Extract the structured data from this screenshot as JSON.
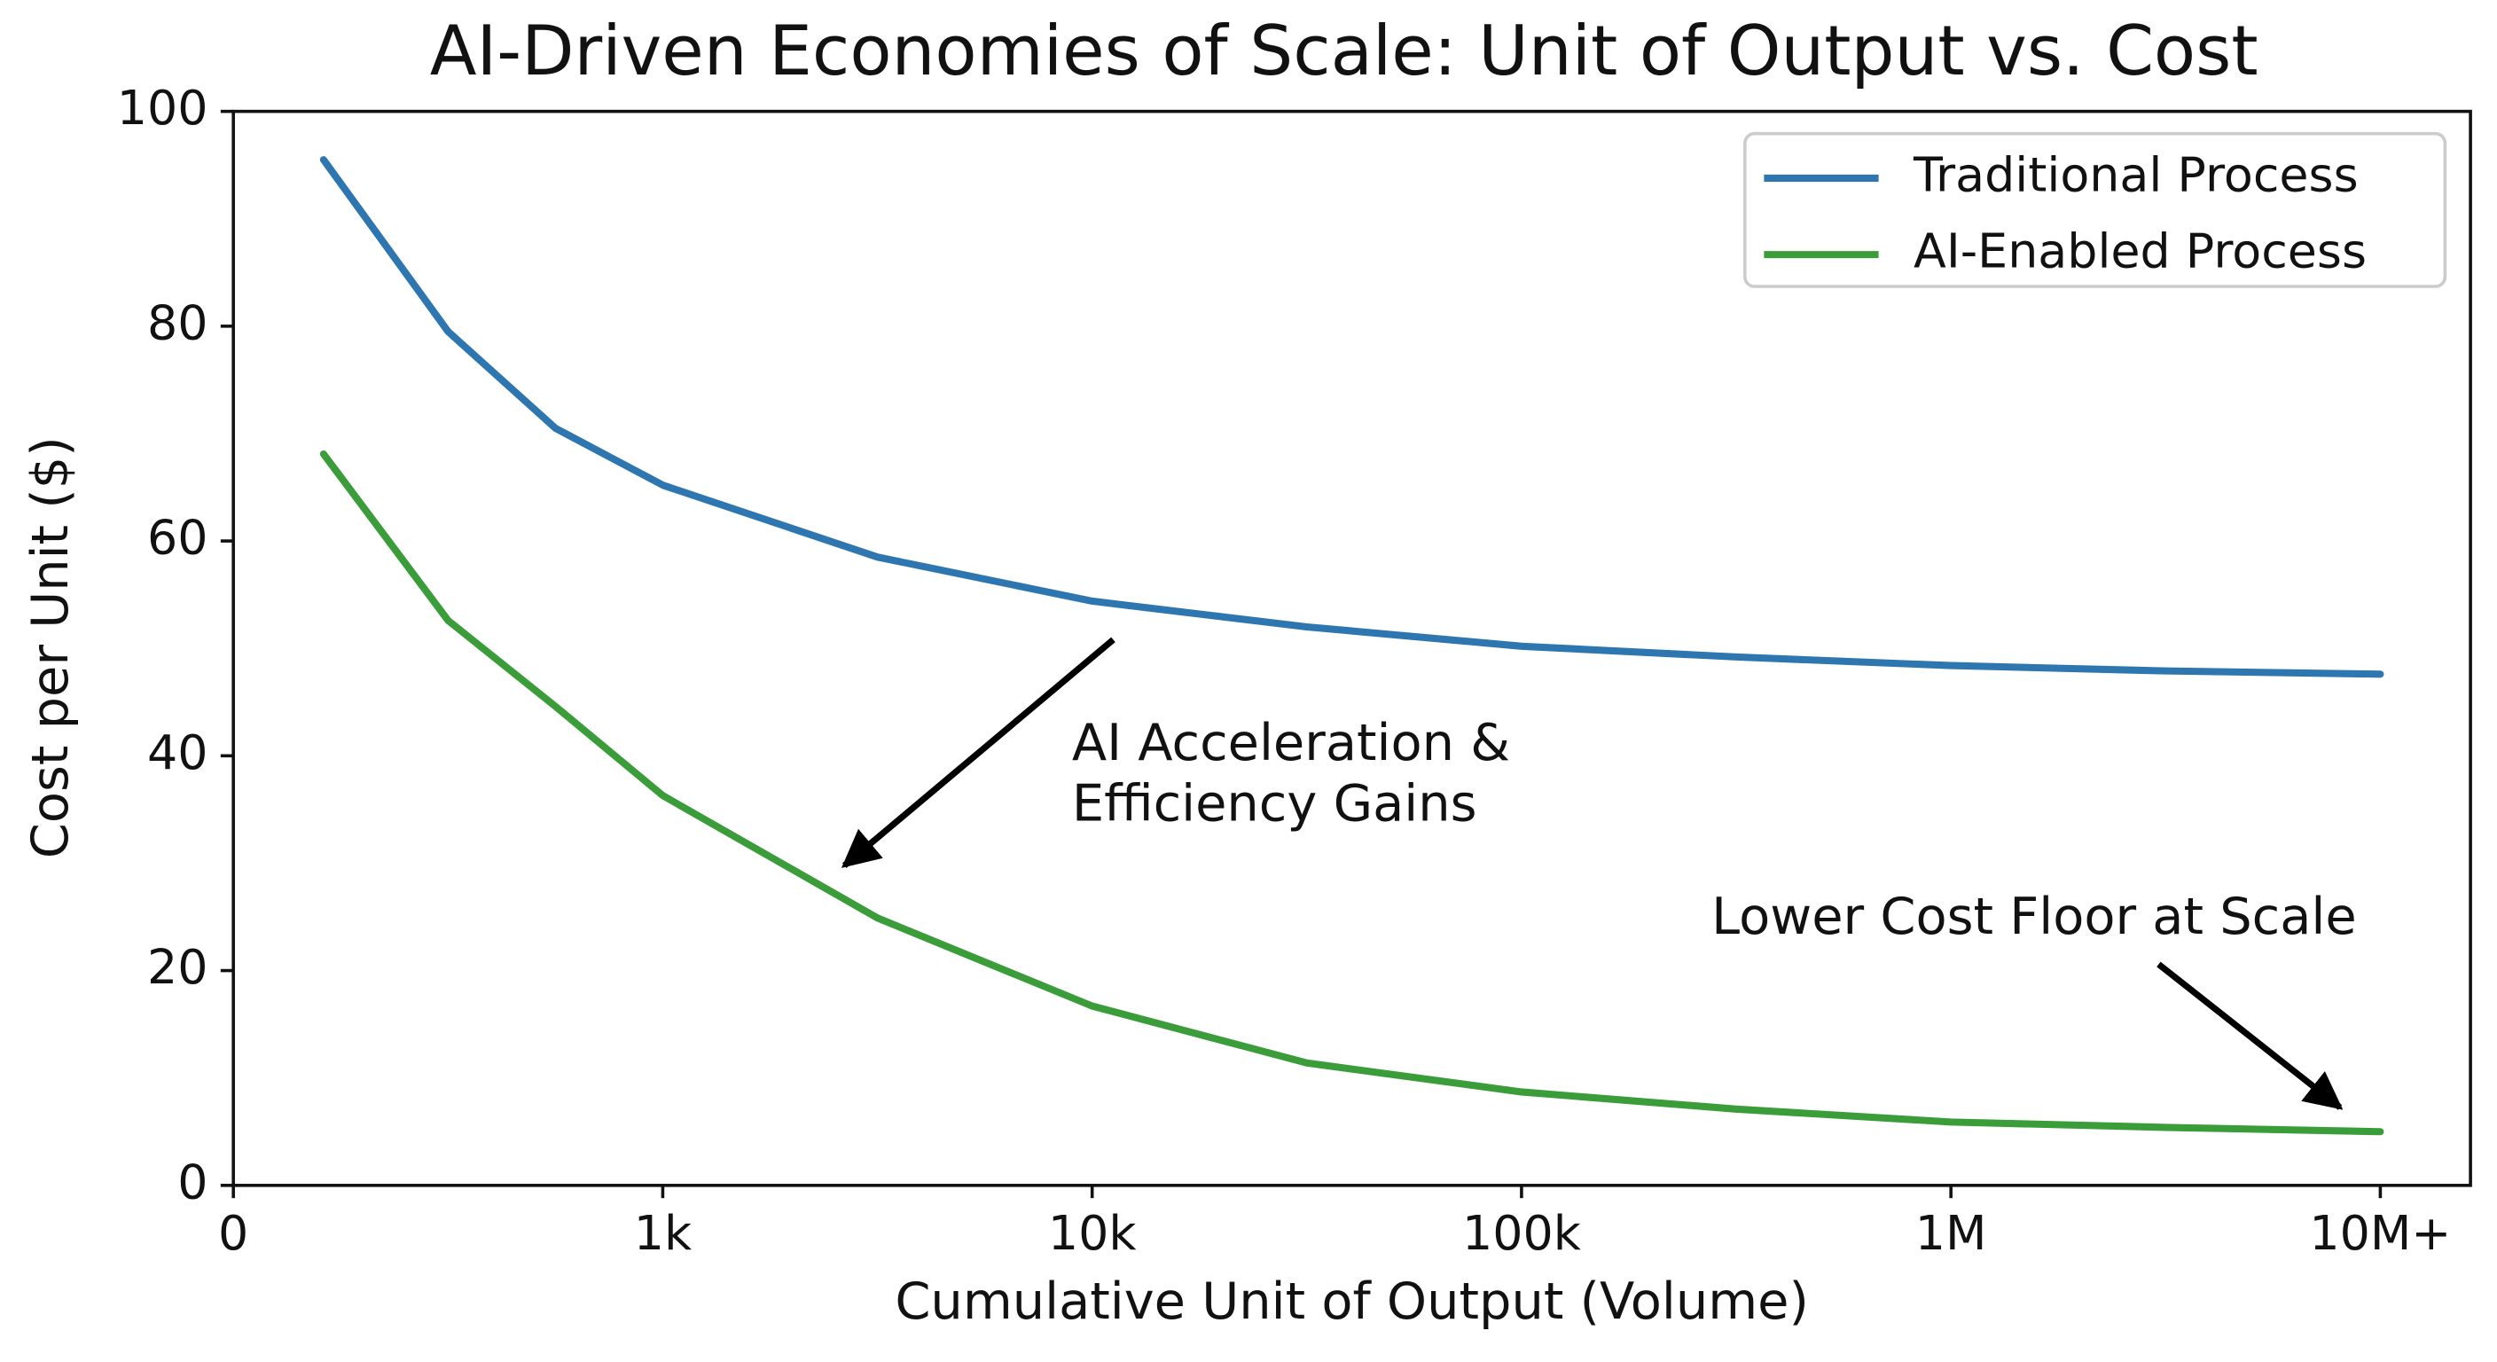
{
  "chart_data": {
    "type": "line",
    "title": "AI-Driven Economies of Scale: Unit of Output vs. Cost",
    "x_label": "Cumulative Unit of Output (Volume)",
    "y_label": "Cost per Unit ($)",
    "x": [
      0.21,
      0.5,
      0.75,
      1,
      1.5,
      2,
      2.5,
      3,
      3.5,
      4,
      4.5,
      5
    ],
    "series": [
      {
        "name": "Traditional Process",
        "color": "#2e76b0",
        "values": [
          95.5,
          79.5,
          70.5,
          65.2,
          58.5,
          54.4,
          52,
          50.2,
          49.2,
          48.4,
          47.9,
          47.6
        ]
      },
      {
        "name": "AI-Enabled Process",
        "color": "#3a9d3a",
        "values": [
          68.1,
          52.6,
          44.6,
          36.3,
          24.9,
          16.7,
          11.4,
          8.7,
          7.1,
          5.9,
          5.4,
          5.0
        ]
      }
    ],
    "xlim": [
      0,
      5.21
    ],
    "xticks": [
      0,
      {
        "value": 1,
        "label": "1k"
      },
      {
        "value": 2,
        "label": "10k"
      },
      {
        "value": 3,
        "label": "100k"
      },
      {
        "value": 4,
        "label": "1M"
      },
      {
        "value": 5,
        "label": "10M+"
      }
    ],
    "ylim": [
      0,
      100
    ],
    "yticks": [
      0,
      20,
      40,
      60,
      80,
      100
    ],
    "legend": "upper right",
    "annotations": [
      {
        "text": [
          "AI Acceleration &",
          "Efficiency Gains"
        ]
      },
      {
        "text": [
          "Lower Cost Floor at Scale"
        ]
      }
    ]
  }
}
